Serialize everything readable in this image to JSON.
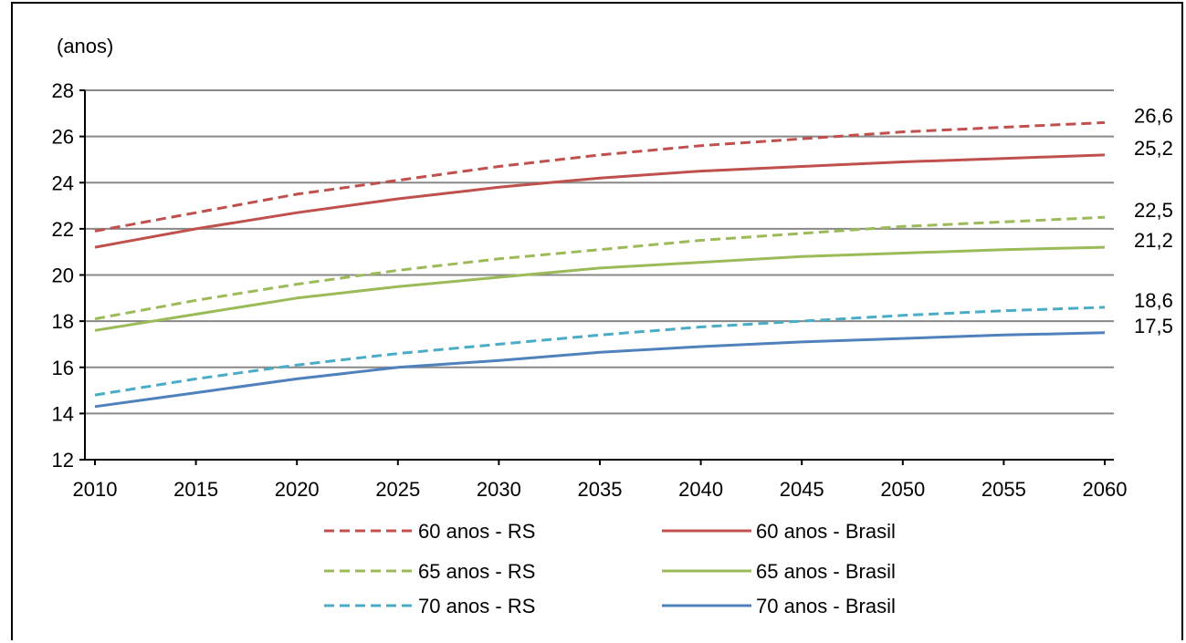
{
  "chart_data": {
    "type": "line",
    "unit_label": "(anos)",
    "xlim": [
      2010,
      2060
    ],
    "ylim": [
      12,
      28
    ],
    "x_ticks": [
      "2010",
      "2015",
      "2020",
      "2025",
      "2030",
      "2035",
      "2040",
      "2045",
      "2050",
      "2055",
      "2060"
    ],
    "y_ticks": [
      "12",
      "14",
      "16",
      "18",
      "20",
      "22",
      "24",
      "26",
      "28"
    ],
    "grid": true,
    "legend_position": "bottom",
    "x": [
      2010,
      2015,
      2020,
      2025,
      2030,
      2035,
      2040,
      2045,
      2050,
      2055,
      2060
    ],
    "series": [
      {
        "name": "60 anos - RS",
        "style": "dashed",
        "color": "#C0504D",
        "values": [
          21.9,
          22.7,
          23.5,
          24.1,
          24.7,
          25.2,
          25.6,
          25.9,
          26.2,
          26.4,
          26.6
        ],
        "end_label": "26,6"
      },
      {
        "name": "60 anos - Brasil",
        "style": "solid",
        "color": "#C0504D",
        "values": [
          21.2,
          22.0,
          22.7,
          23.3,
          23.8,
          24.2,
          24.5,
          24.7,
          24.9,
          25.05,
          25.2
        ],
        "end_label": "25,2"
      },
      {
        "name": "65 anos - RS",
        "style": "dashed",
        "color": "#9BBB59",
        "values": [
          18.1,
          18.9,
          19.6,
          20.2,
          20.7,
          21.1,
          21.5,
          21.8,
          22.1,
          22.3,
          22.5
        ],
        "end_label": "22,5"
      },
      {
        "name": "65 anos - Brasil",
        "style": "solid",
        "color": "#9BBB59",
        "values": [
          17.6,
          18.3,
          19.0,
          19.5,
          19.9,
          20.3,
          20.55,
          20.8,
          20.95,
          21.1,
          21.2
        ],
        "end_label": "21,2"
      },
      {
        "name": "70 anos - RS",
        "style": "dashed",
        "color": "#4BACC6",
        "values": [
          14.8,
          15.5,
          16.1,
          16.6,
          17.0,
          17.4,
          17.75,
          18.0,
          18.25,
          18.45,
          18.6
        ],
        "end_label": "18,6"
      },
      {
        "name": "70 anos - Brasil",
        "style": "solid",
        "color": "#4F81BD",
        "values": [
          14.3,
          14.9,
          15.5,
          16.0,
          16.3,
          16.65,
          16.9,
          17.1,
          17.25,
          17.4,
          17.5
        ],
        "end_label": "17,5"
      }
    ]
  }
}
